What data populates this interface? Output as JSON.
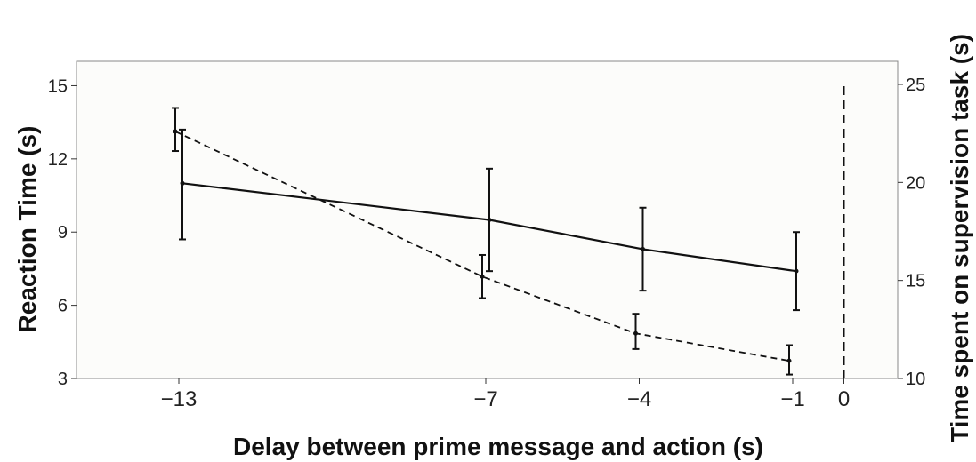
{
  "chart_data": {
    "type": "line",
    "title": "",
    "xlabel": "Delay between prime message and action (s)",
    "ylabel": "Reaction Time (s)",
    "y2label": "Time spent on supervision task (s)",
    "x_ticks": [
      "−13",
      "−7",
      "−4",
      "−1",
      "0"
    ],
    "x_tick_values": [
      -13,
      -7,
      -4,
      -1,
      0
    ],
    "xlim": [
      -15,
      1
    ],
    "ylim": [
      3,
      16
    ],
    "y_ticks": [
      3,
      6,
      9,
      12,
      15
    ],
    "y2lim": [
      10,
      25
    ],
    "y2_ticks": [
      10,
      15,
      20,
      25
    ],
    "grid": false,
    "vline_x": 0,
    "series": [
      {
        "axis": "left",
        "style": "solid",
        "x": [
          -13,
          -7,
          -4,
          -1
        ],
        "values": [
          11.0,
          9.5,
          8.3,
          7.4
        ],
        "err_low": [
          8.7,
          7.4,
          6.6,
          5.8
        ],
        "err_high": [
          13.2,
          11.6,
          10.0,
          9.0
        ]
      },
      {
        "axis": "right",
        "style": "dashed",
        "x": [
          -13,
          -7,
          -4,
          -1
        ],
        "values": [
          22.6,
          15.2,
          12.3,
          10.9
        ],
        "err_low": [
          21.6,
          14.1,
          11.5,
          10.2
        ],
        "err_high": [
          23.8,
          16.3,
          13.3,
          11.7
        ]
      }
    ]
  }
}
